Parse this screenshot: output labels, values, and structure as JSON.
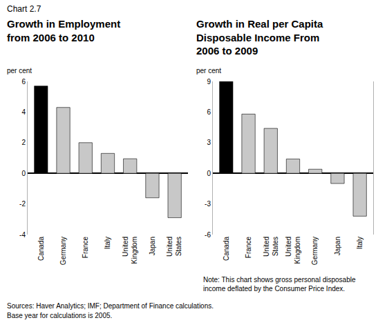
{
  "figure_label": "Chart 2.7",
  "chart_data": [
    {
      "type": "bar",
      "title": "Growth in Employment\nfrom 2006 to 2010",
      "y_label": "per cent",
      "categories": [
        "Canada",
        "Germany",
        "France",
        "Italy",
        "United Kingdom",
        "Japan",
        "United States"
      ],
      "values": [
        5.7,
        4.3,
        2.0,
        1.3,
        0.95,
        -1.6,
        -2.9
      ],
      "colors": [
        "#000000",
        "#c8c8c8",
        "#c8c8c8",
        "#c8c8c8",
        "#c8c8c8",
        "#c8c8c8",
        "#c8c8c8"
      ],
      "ylim": [
        -4,
        6
      ],
      "yticks": [
        -4,
        -2,
        0,
        2,
        4,
        6
      ],
      "grid": false
    },
    {
      "type": "bar",
      "title": "Growth in Real per Capita\nDisposable Income From\n2006 to 2009",
      "y_label": "per cent",
      "categories": [
        "Canada",
        "France",
        "United States",
        "United Kingdom",
        "Germany",
        "Japan",
        "Italy"
      ],
      "values": [
        9.0,
        5.8,
        4.4,
        1.4,
        0.4,
        -1.0,
        -4.2
      ],
      "colors": [
        "#000000",
        "#c8c8c8",
        "#c8c8c8",
        "#c8c8c8",
        "#c8c8c8",
        "#c8c8c8",
        "#c8c8c8"
      ],
      "ylim": [
        -6,
        9
      ],
      "yticks": [
        -6,
        -3,
        0,
        3,
        6,
        9
      ],
      "grid": false,
      "annotations": [
        "Note: This chart shows gross personal disposable\nincome deflated by the Consumer Price Index."
      ]
    }
  ],
  "footer": [
    "Sources: Haver Analytics; IMF; Department of Finance calculations.",
    "Base year for calculations is 2005."
  ]
}
